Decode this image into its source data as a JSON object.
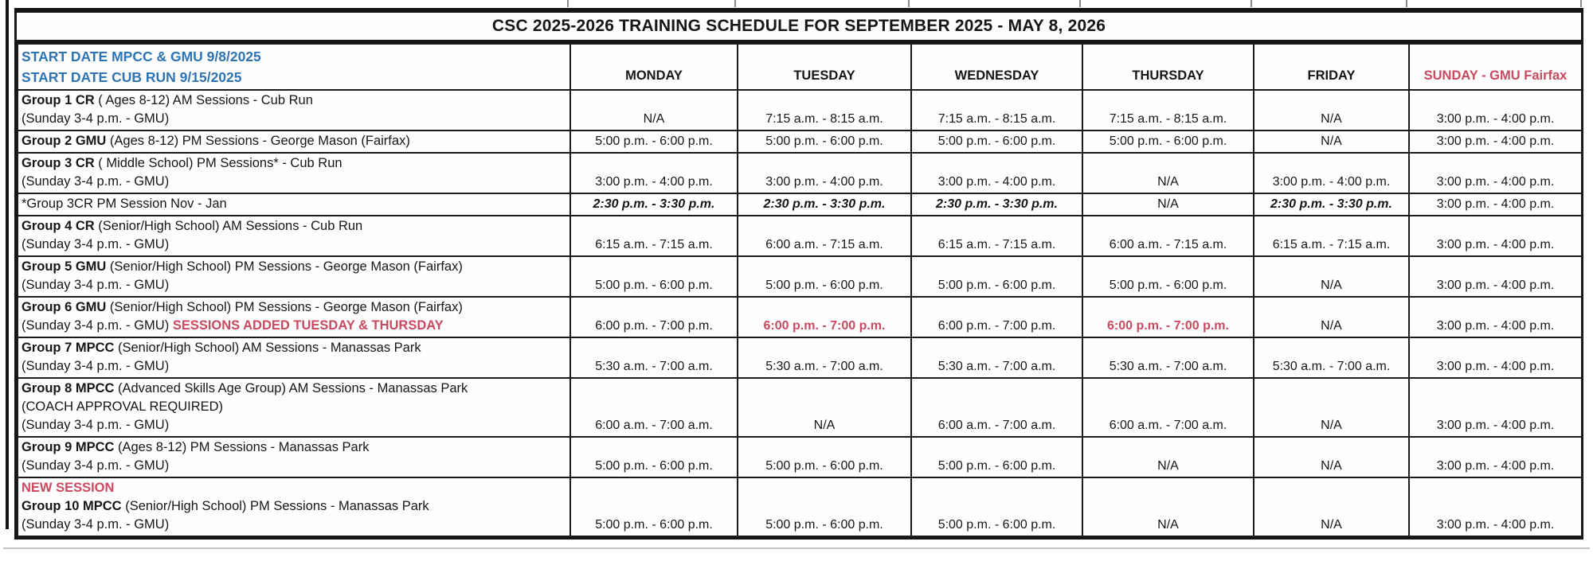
{
  "title": "CSC 2025-2026 TRAINING SCHEDULE FOR SEPTEMBER 2025  - MAY 8, 2026",
  "header": {
    "start_date_line1": "START DATE MPCC & GMU 9/8/2025",
    "start_date_line2": "START DATE CUB RUN 9/15/2025",
    "days": [
      "MONDAY",
      "TUESDAY",
      "WEDNESDAY",
      "THURSDAY",
      "FRIDAY",
      "SUNDAY - GMU Fairfax"
    ]
  },
  "colors": {
    "accent_blue": "#2e74b5",
    "accent_red": "#c9495e",
    "grid_black": "#1b1b1b"
  },
  "rows": [
    {
      "name": "group-1-cr",
      "label": [
        [
          {
            "text": "Group 1 CR",
            "bold": true
          },
          {
            "text": " ( Ages 8-12) AM Sessions - Cub Run"
          }
        ],
        [
          {
            "text": "(Sunday 3-4 p.m. - GMU)"
          }
        ]
      ],
      "times": [
        {
          "text": "N/A"
        },
        {
          "text": "7:15 a.m. - 8:15 a.m."
        },
        {
          "text": "7:15 a.m. - 8:15 a.m."
        },
        {
          "text": "7:15 a.m. - 8:15 a.m."
        },
        {
          "text": "N/A"
        },
        {
          "text": "3:00 p.m. - 4:00 p.m."
        }
      ]
    },
    {
      "name": "group-2-gmu",
      "label": [
        [
          {
            "text": "Group 2 GMU",
            "bold": true
          },
          {
            "text": " (Ages 8-12) PM Sessions - George Mason (Fairfax)"
          }
        ]
      ],
      "times": [
        {
          "text": "5:00 p.m. - 6:00 p.m."
        },
        {
          "text": "5:00 p.m. - 6:00 p.m."
        },
        {
          "text": "5:00 p.m. - 6:00 p.m."
        },
        {
          "text": "5:00 p.m. - 6:00 p.m."
        },
        {
          "text": "N/A"
        },
        {
          "text": "3:00 p.m. - 4:00 p.m."
        }
      ]
    },
    {
      "name": "group-3-cr",
      "label": [
        [
          {
            "text": "Group 3 CR",
            "bold": true
          },
          {
            "text": " ( Middle School) PM Sessions* - Cub Run"
          }
        ],
        [
          {
            "text": "(Sunday 3-4 p.m. - GMU)"
          }
        ]
      ],
      "times": [
        {
          "text": "3:00 p.m. - 4:00 p.m."
        },
        {
          "text": "3:00 p.m. - 4:00 p.m."
        },
        {
          "text": "3:00 p.m. - 4:00 p.m."
        },
        {
          "text": "N/A"
        },
        {
          "text": "3:00 p.m. - 4:00 p.m."
        },
        {
          "text": "3:00 p.m. - 4:00 p.m."
        }
      ]
    },
    {
      "name": "group-3cr-nov-jan",
      "label": [
        [
          {
            "text": "*Group 3CR  PM Session  Nov - Jan"
          }
        ]
      ],
      "times": [
        {
          "text": "2:30 p.m. - 3:30 p.m.",
          "italic": true
        },
        {
          "text": "2:30 p.m. - 3:30 p.m.",
          "italic": true
        },
        {
          "text": "2:30 p.m. - 3:30 p.m.",
          "italic": true
        },
        {
          "text": "N/A"
        },
        {
          "text": "2:30 p.m. - 3:30 p.m.",
          "italic": true
        },
        {
          "text": "3:00 p.m. - 4:00 p.m."
        }
      ]
    },
    {
      "name": "group-4-cr",
      "label": [
        [
          {
            "text": "Group 4 CR",
            "bold": true
          },
          {
            "text": " (Senior/High School) AM Sessions - Cub Run"
          }
        ],
        [
          {
            "text": "(Sunday 3-4 p.m.  - GMU)"
          }
        ]
      ],
      "times": [
        {
          "text": "6:15 a.m. - 7:15 a.m."
        },
        {
          "text": "6:00 a.m. - 7:15 a.m."
        },
        {
          "text": "6:15 a.m. - 7:15 a.m."
        },
        {
          "text": "6:00 a.m. - 7:15 a.m."
        },
        {
          "text": "6:15 a.m. - 7:15 a.m."
        },
        {
          "text": "3:00 p.m. - 4:00 p.m."
        }
      ]
    },
    {
      "name": "group-5-gmu",
      "label": [
        [
          {
            "text": "Group 5 GMU",
            "bold": true
          },
          {
            "text": " (Senior/High School) PM Sessions - George Mason (Fairfax)"
          }
        ],
        [
          {
            "text": "(Sunday 3-4 p.m. - GMU)"
          }
        ]
      ],
      "times": [
        {
          "text": "5:00 p.m. - 6:00 p.m."
        },
        {
          "text": "5:00 p.m. - 6:00 p.m."
        },
        {
          "text": "5:00 p.m. - 6:00 p.m."
        },
        {
          "text": "5:00 p.m. - 6:00 p.m."
        },
        {
          "text": "N/A"
        },
        {
          "text": "3:00 p.m. - 4:00 p.m."
        }
      ]
    },
    {
      "name": "group-6-gmu",
      "label": [
        [
          {
            "text": "Group 6 GMU",
            "bold": true
          },
          {
            "text": " (Senior/High School) PM Sessions - George Mason (Fairfax)"
          }
        ],
        [
          {
            "text": "(Sunday 3-4 p.m. - GMU) "
          },
          {
            "text": "SESSIONS ADDED TUESDAY & THURSDAY",
            "red": true
          }
        ]
      ],
      "times": [
        {
          "text": "6:00 p.m. - 7:00 p.m."
        },
        {
          "text": "6:00 p.m. - 7:00 p.m.",
          "red": true
        },
        {
          "text": "6:00 p.m. - 7:00 p.m."
        },
        {
          "text": "6:00 p.m. - 7:00 p.m.",
          "red": true
        },
        {
          "text": "N/A"
        },
        {
          "text": "3:00 p.m. - 4:00 p.m."
        }
      ]
    },
    {
      "name": "group-7-mpcc",
      "label": [
        [
          {
            "text": "Group 7 MPCC",
            "bold": true
          },
          {
            "text": " (Senior/High School) AM Sessions - Manassas Park"
          }
        ],
        [
          {
            "text": "(Sunday 3-4 p.m. - GMU)"
          }
        ]
      ],
      "times": [
        {
          "text": "5:30 a.m. - 7:00 a.m."
        },
        {
          "text": "5:30 a.m. - 7:00 a.m."
        },
        {
          "text": "5:30 a.m. - 7:00 a.m."
        },
        {
          "text": "5:30 a.m. - 7:00 a.m."
        },
        {
          "text": "5:30 a.m. - 7:00 a.m."
        },
        {
          "text": "3:00 p.m. - 4:00 p.m."
        }
      ]
    },
    {
      "name": "group-8-mpcc",
      "label": [
        [
          {
            "text": "Group 8 MPCC",
            "bold": true
          },
          {
            "text": " (Advanced Skills Age Group) AM Sessions - Manassas Park"
          }
        ],
        [
          {
            "text": "(COACH APPROVAL REQUIRED)"
          }
        ],
        [
          {
            "text": "(Sunday 3-4 p.m. - GMU)"
          }
        ]
      ],
      "times": [
        {
          "text": "6:00 a.m. - 7:00 a.m."
        },
        {
          "text": "N/A"
        },
        {
          "text": "6:00 a.m. - 7:00 a.m."
        },
        {
          "text": "6:00 a.m. - 7:00 a.m."
        },
        {
          "text": "N/A"
        },
        {
          "text": "3:00 p.m. - 4:00 p.m."
        }
      ]
    },
    {
      "name": "group-9-mpcc",
      "label": [
        [
          {
            "text": "Group 9 MPCC",
            "bold": true
          },
          {
            "text": " (Ages 8-12) PM Sessions - Manassas Park"
          }
        ],
        [
          {
            "text": "(Sunday 3-4 p.m. - GMU)"
          }
        ]
      ],
      "times": [
        {
          "text": "5:00 p.m. - 6:00 p.m."
        },
        {
          "text": "5:00 p.m. - 6:00 p.m."
        },
        {
          "text": "5:00 p.m. - 6:00 p.m."
        },
        {
          "text": "N/A"
        },
        {
          "text": "N/A"
        },
        {
          "text": "3:00 p.m. - 4:00 p.m."
        }
      ]
    },
    {
      "name": "group-10-mpcc",
      "label": [
        [
          {
            "text": "NEW SESSION",
            "red": true
          }
        ],
        [
          {
            "text": "Group 10 MPCC",
            "bold": true
          },
          {
            "text": " (Senior/High School) PM Sessions - Manassas Park"
          }
        ],
        [
          {
            "text": "(Sunday  3-4 p.m. - GMU)"
          }
        ]
      ],
      "times": [
        {
          "text": "5:00 p.m. - 6:00 p.m."
        },
        {
          "text": "5:00 p.m. - 6:00 p.m."
        },
        {
          "text": "5:00 p.m. - 6:00 p.m."
        },
        {
          "text": "N/A"
        },
        {
          "text": "N/A"
        },
        {
          "text": "3:00 p.m. - 4:00 p.m."
        }
      ]
    }
  ]
}
